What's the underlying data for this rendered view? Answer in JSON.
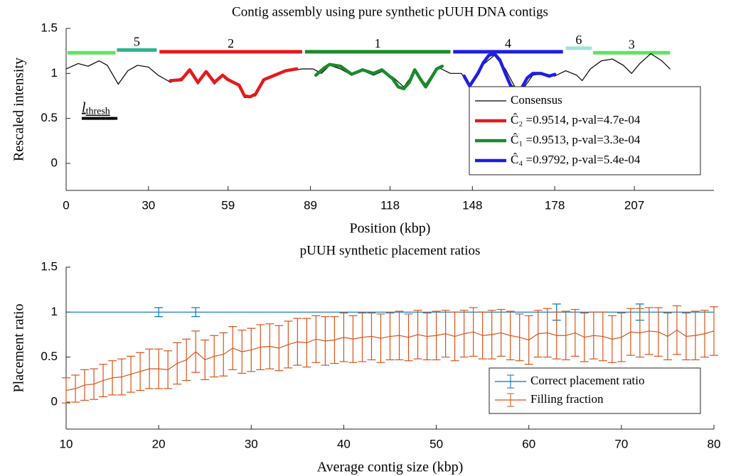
{
  "chart_data": [
    {
      "type": "line",
      "title": "Contig assembly using pure synthetic pUUH DNA contigs",
      "xlabel": "Position (kbp)",
      "ylabel": "Rescaled intensity",
      "xlim": [
        0,
        236
      ],
      "ylim": [
        -0.3,
        1.5
      ],
      "xticks": [
        0,
        30,
        59,
        89,
        118,
        148,
        178,
        207
      ],
      "yticks": [
        0,
        0.5,
        1,
        1.5
      ],
      "legend": "lower right",
      "series": [
        {
          "name": "Consensus",
          "color": "#000000",
          "x": [
            0,
            4.4,
            8,
            12,
            15,
            19,
            22.5,
            26,
            30,
            33.5,
            37,
            38,
            42,
            45,
            48,
            51,
            54,
            57,
            59,
            63,
            65,
            69,
            72,
            76,
            80,
            82,
            86,
            90,
            93,
            96,
            100,
            104,
            108,
            112,
            115,
            119,
            123,
            127,
            131,
            134,
            136,
            140,
            144,
            147,
            150,
            152,
            156,
            160,
            164,
            167,
            170,
            174,
            178,
            182,
            186,
            188,
            191,
            195,
            199,
            203,
            206,
            209,
            213,
            217,
            220
          ],
          "values": [
            1.05,
            1.11,
            1.08,
            1.14,
            1.09,
            0.88,
            1.03,
            1.09,
            1.07,
            0.98,
            0.92,
            0.9,
            0.95,
            1.03,
            0.88,
            1.01,
            0.88,
            0.97,
            0.92,
            0.86,
            0.73,
            0.75,
            0.94,
            0.98,
            1.03,
            1.03,
            1.05,
            1.05,
            1.0,
            1.09,
            1.05,
            0.98,
            1.03,
            0.98,
            1.02,
            0.96,
            0.85,
            1.02,
            0.88,
            1.02,
            1.06,
            1.0,
            1.0,
            0.86,
            1.0,
            1.1,
            1.2,
            1.05,
            0.82,
            0.85,
            0.98,
            1.0,
            0.97,
            1.03,
            0.98,
            0.92,
            1.05,
            1.14,
            1.16,
            1.09,
            1.0,
            1.11,
            1.22,
            1.14,
            1.05
          ]
        },
        {
          "name": "Ĉ₂ =0.9514, p-val=4.7e-04",
          "color": "#e31a1c",
          "x": [
            38,
            42,
            45,
            48,
            51,
            54,
            57,
            59,
            63,
            65,
            67,
            69,
            72,
            76,
            80,
            84
          ],
          "values": [
            0.92,
            0.93,
            1.04,
            0.9,
            1.02,
            0.9,
            0.98,
            0.93,
            0.87,
            0.75,
            0.74,
            0.77,
            0.93,
            0.98,
            1.03,
            1.05
          ]
        },
        {
          "name": "Ĉ₁ =0.9513, p-val=3.3e-04",
          "color": "#1a8a2a",
          "x": [
            91,
            94,
            96,
            100,
            104,
            108,
            112,
            115,
            119,
            121,
            123,
            125,
            127,
            129,
            131,
            133,
            135,
            137
          ],
          "values": [
            0.98,
            1.06,
            1.1,
            1.08,
            0.99,
            1.04,
            1.0,
            1.04,
            0.94,
            0.85,
            0.83,
            0.9,
            1.04,
            0.94,
            0.85,
            0.95,
            1.05,
            1.08
          ]
        },
        {
          "name": "Ĉ₄ =0.9792, p-val=5.4e-04",
          "color": "#1f1fe0",
          "x": [
            145,
            147,
            150,
            152,
            154,
            156,
            158,
            160,
            162,
            164,
            166,
            168,
            170,
            173,
            176,
            178
          ],
          "values": [
            0.97,
            0.86,
            1.0,
            1.12,
            1.2,
            1.22,
            1.15,
            1.0,
            0.86,
            0.82,
            0.84,
            0.95,
            1.0,
            1.0,
            0.97,
            0.99
          ]
        }
      ],
      "contigs": [
        {
          "label": "5",
          "color": "#2db38e",
          "y": 1.26,
          "segments": [
            [
              18.5,
              33
            ]
          ]
        },
        {
          "label": "2",
          "color": "#e31a1c",
          "y": 1.24,
          "segments": [
            [
              34,
              86
            ]
          ]
        },
        {
          "label": "1",
          "color": "#1a8a2a",
          "y": 1.24,
          "segments": [
            [
              87,
              140
            ]
          ]
        },
        {
          "label": "4",
          "color": "#1f1fe0",
          "y": 1.24,
          "segments": [
            [
              141,
              181
            ]
          ]
        },
        {
          "label": "6",
          "color": "#9fe3d6",
          "y": 1.28,
          "segments": [
            [
              182,
              191.5
            ]
          ]
        },
        {
          "label": "3",
          "color": "#5fe35f",
          "y": 1.23,
          "segments": [
            [
              192,
              220
            ],
            [
              0.5,
              18
            ]
          ]
        }
      ],
      "threshold": {
        "label": "l",
        "sub": "thresh",
        "x": [
          5.7,
          18.7
        ],
        "y": 0.5
      }
    },
    {
      "type": "errorbar",
      "title": "pUUH synthetic placement ratios",
      "xlabel": "Average contig size (kbp)",
      "ylabel": "Placement ratio",
      "xlim": [
        10,
        80
      ],
      "ylim": [
        -0.3,
        1.5
      ],
      "xticks": [
        10,
        20,
        30,
        40,
        50,
        60,
        70,
        80
      ],
      "yticks": [
        0,
        0.5,
        1,
        1.5
      ],
      "legend": "lower right",
      "series": [
        {
          "name": "Correct placement ratio",
          "color": "#0072bd",
          "x": [
            10,
            20,
            24,
            63,
            72,
            80
          ],
          "values": [
            1,
            1,
            1,
            1,
            1,
            1
          ],
          "errors": [
            0,
            0.05,
            0.05,
            0.09,
            0.09,
            0
          ]
        },
        {
          "name": "Filling fraction",
          "color": "#d95319",
          "x": [
            10,
            11,
            12,
            13,
            14,
            15,
            16,
            17,
            18,
            19,
            20,
            21,
            22,
            23,
            24,
            25,
            26,
            27,
            28,
            29,
            30,
            31,
            32,
            33,
            34,
            35,
            36,
            37,
            38,
            39,
            40,
            41,
            42,
            43,
            44,
            45,
            46,
            47,
            48,
            49,
            50,
            51,
            52,
            53,
            54,
            55,
            56,
            57,
            58,
            59,
            60,
            61,
            62,
            63,
            64,
            65,
            66,
            67,
            68,
            69,
            70,
            71,
            72,
            73,
            74,
            75,
            76,
            77,
            78,
            79,
            80
          ],
          "values": [
            0.13,
            0.15,
            0.19,
            0.2,
            0.24,
            0.27,
            0.28,
            0.31,
            0.34,
            0.37,
            0.37,
            0.36,
            0.43,
            0.47,
            0.56,
            0.47,
            0.51,
            0.53,
            0.6,
            0.56,
            0.58,
            0.61,
            0.62,
            0.6,
            0.64,
            0.67,
            0.66,
            0.7,
            0.68,
            0.69,
            0.72,
            0.7,
            0.72,
            0.73,
            0.71,
            0.73,
            0.74,
            0.72,
            0.75,
            0.73,
            0.74,
            0.76,
            0.73,
            0.76,
            0.78,
            0.74,
            0.75,
            0.77,
            0.74,
            0.72,
            0.69,
            0.76,
            0.77,
            0.74,
            0.74,
            0.77,
            0.72,
            0.74,
            0.73,
            0.7,
            0.72,
            0.78,
            0.77,
            0.79,
            0.78,
            0.73,
            0.8,
            0.73,
            0.74,
            0.76,
            0.79
          ],
          "errors": [
            0.14,
            0.15,
            0.17,
            0.17,
            0.18,
            0.19,
            0.2,
            0.2,
            0.21,
            0.22,
            0.22,
            0.21,
            0.23,
            0.23,
            0.23,
            0.22,
            0.23,
            0.24,
            0.24,
            0.24,
            0.24,
            0.25,
            0.25,
            0.25,
            0.26,
            0.26,
            0.27,
            0.26,
            0.27,
            0.26,
            0.27,
            0.26,
            0.27,
            0.26,
            0.27,
            0.26,
            0.27,
            0.26,
            0.27,
            0.26,
            0.27,
            0.26,
            0.27,
            0.26,
            0.27,
            0.26,
            0.27,
            0.26,
            0.27,
            0.26,
            0.27,
            0.26,
            0.27,
            0.26,
            0.27,
            0.26,
            0.27,
            0.26,
            0.27,
            0.26,
            0.27,
            0.26,
            0.27,
            0.26,
            0.27,
            0.26,
            0.27,
            0.26,
            0.27,
            0.26,
            0.27
          ]
        }
      ]
    }
  ]
}
